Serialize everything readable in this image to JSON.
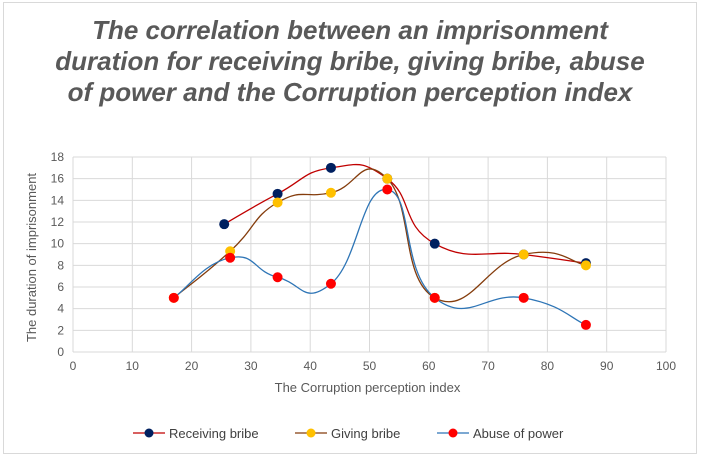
{
  "chart_data": {
    "type": "scatter",
    "title": "The correlation between an imprisonment duration for receiving bribe, giving bribe, abuse of power and the Corruption perception index",
    "xlabel": "The Corruption perception index",
    "ylabel": "The duration of imprisonment",
    "xlim": [
      0,
      100
    ],
    "ylim": [
      0,
      18
    ],
    "xticks": [
      0,
      10,
      20,
      30,
      40,
      50,
      60,
      70,
      80,
      90,
      100
    ],
    "yticks": [
      0,
      2,
      4,
      6,
      8,
      10,
      12,
      14,
      16,
      18
    ],
    "grid": true,
    "legend_position": "bottom",
    "series": [
      {
        "name": "Receiving bribe",
        "line_color": "#c00000",
        "marker_color": "#002060",
        "points": [
          [
            25.5,
            11.8
          ],
          [
            34.5,
            14.6
          ],
          [
            43.5,
            17
          ],
          [
            53,
            16
          ],
          [
            61,
            10
          ],
          [
            76,
            9
          ],
          [
            86.5,
            8.2
          ]
        ]
      },
      {
        "name": "Giving bribe",
        "line_color": "#843c0c",
        "marker_color": "#ffc000",
        "points": [
          [
            17,
            5
          ],
          [
            26.5,
            9.3
          ],
          [
            34.5,
            13.8
          ],
          [
            43.5,
            14.7
          ],
          [
            53,
            16
          ],
          [
            61,
            5
          ],
          [
            76,
            9
          ],
          [
            86.5,
            8
          ]
        ]
      },
      {
        "name": "Abuse of power",
        "line_color": "#2e75b6",
        "marker_color": "#ff0000",
        "points": [
          [
            17,
            5
          ],
          [
            26.5,
            8.7
          ],
          [
            34.5,
            6.9
          ],
          [
            43.5,
            6.3
          ],
          [
            53,
            15
          ],
          [
            61,
            5
          ],
          [
            76,
            5
          ],
          [
            86.5,
            2.5
          ]
        ]
      }
    ]
  }
}
